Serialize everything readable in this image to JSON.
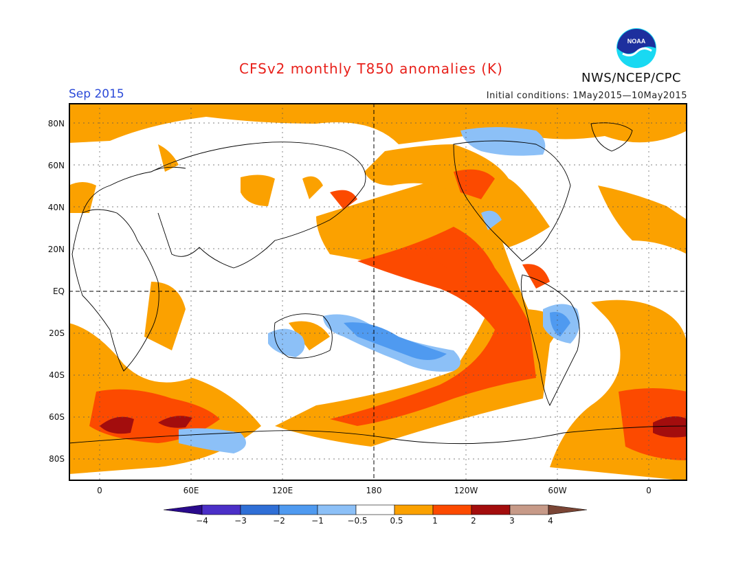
{
  "header": {
    "title": "CFSv2 monthly T850 anomalies (K)",
    "agency": "NWS/NCEP/CPC",
    "logo_text": "NOAA",
    "valid_month": "Sep 2015",
    "initial_conditions": "Initial conditions: 1May2015—10May2015"
  },
  "map": {
    "lat_labels": [
      "80N",
      "60N",
      "40N",
      "20N",
      "EQ",
      "20S",
      "40S",
      "60S",
      "80S"
    ],
    "lon_labels": [
      "0",
      "60E",
      "120E",
      "180",
      "120W",
      "60W",
      "0"
    ]
  },
  "colorbar": {
    "labels": [
      "−4",
      "−3",
      "−2",
      "−1",
      "−0.5",
      "0.5",
      "1",
      "2",
      "3",
      "4"
    ],
    "colors": [
      "#2a0a8c",
      "#4b2fc7",
      "#2f6fd6",
      "#4f9af0",
      "#8cc0f7",
      "#ffffff",
      "#fba100",
      "#fc4a00",
      "#a30d0d",
      "#c79a88",
      "#7a4535"
    ]
  }
}
